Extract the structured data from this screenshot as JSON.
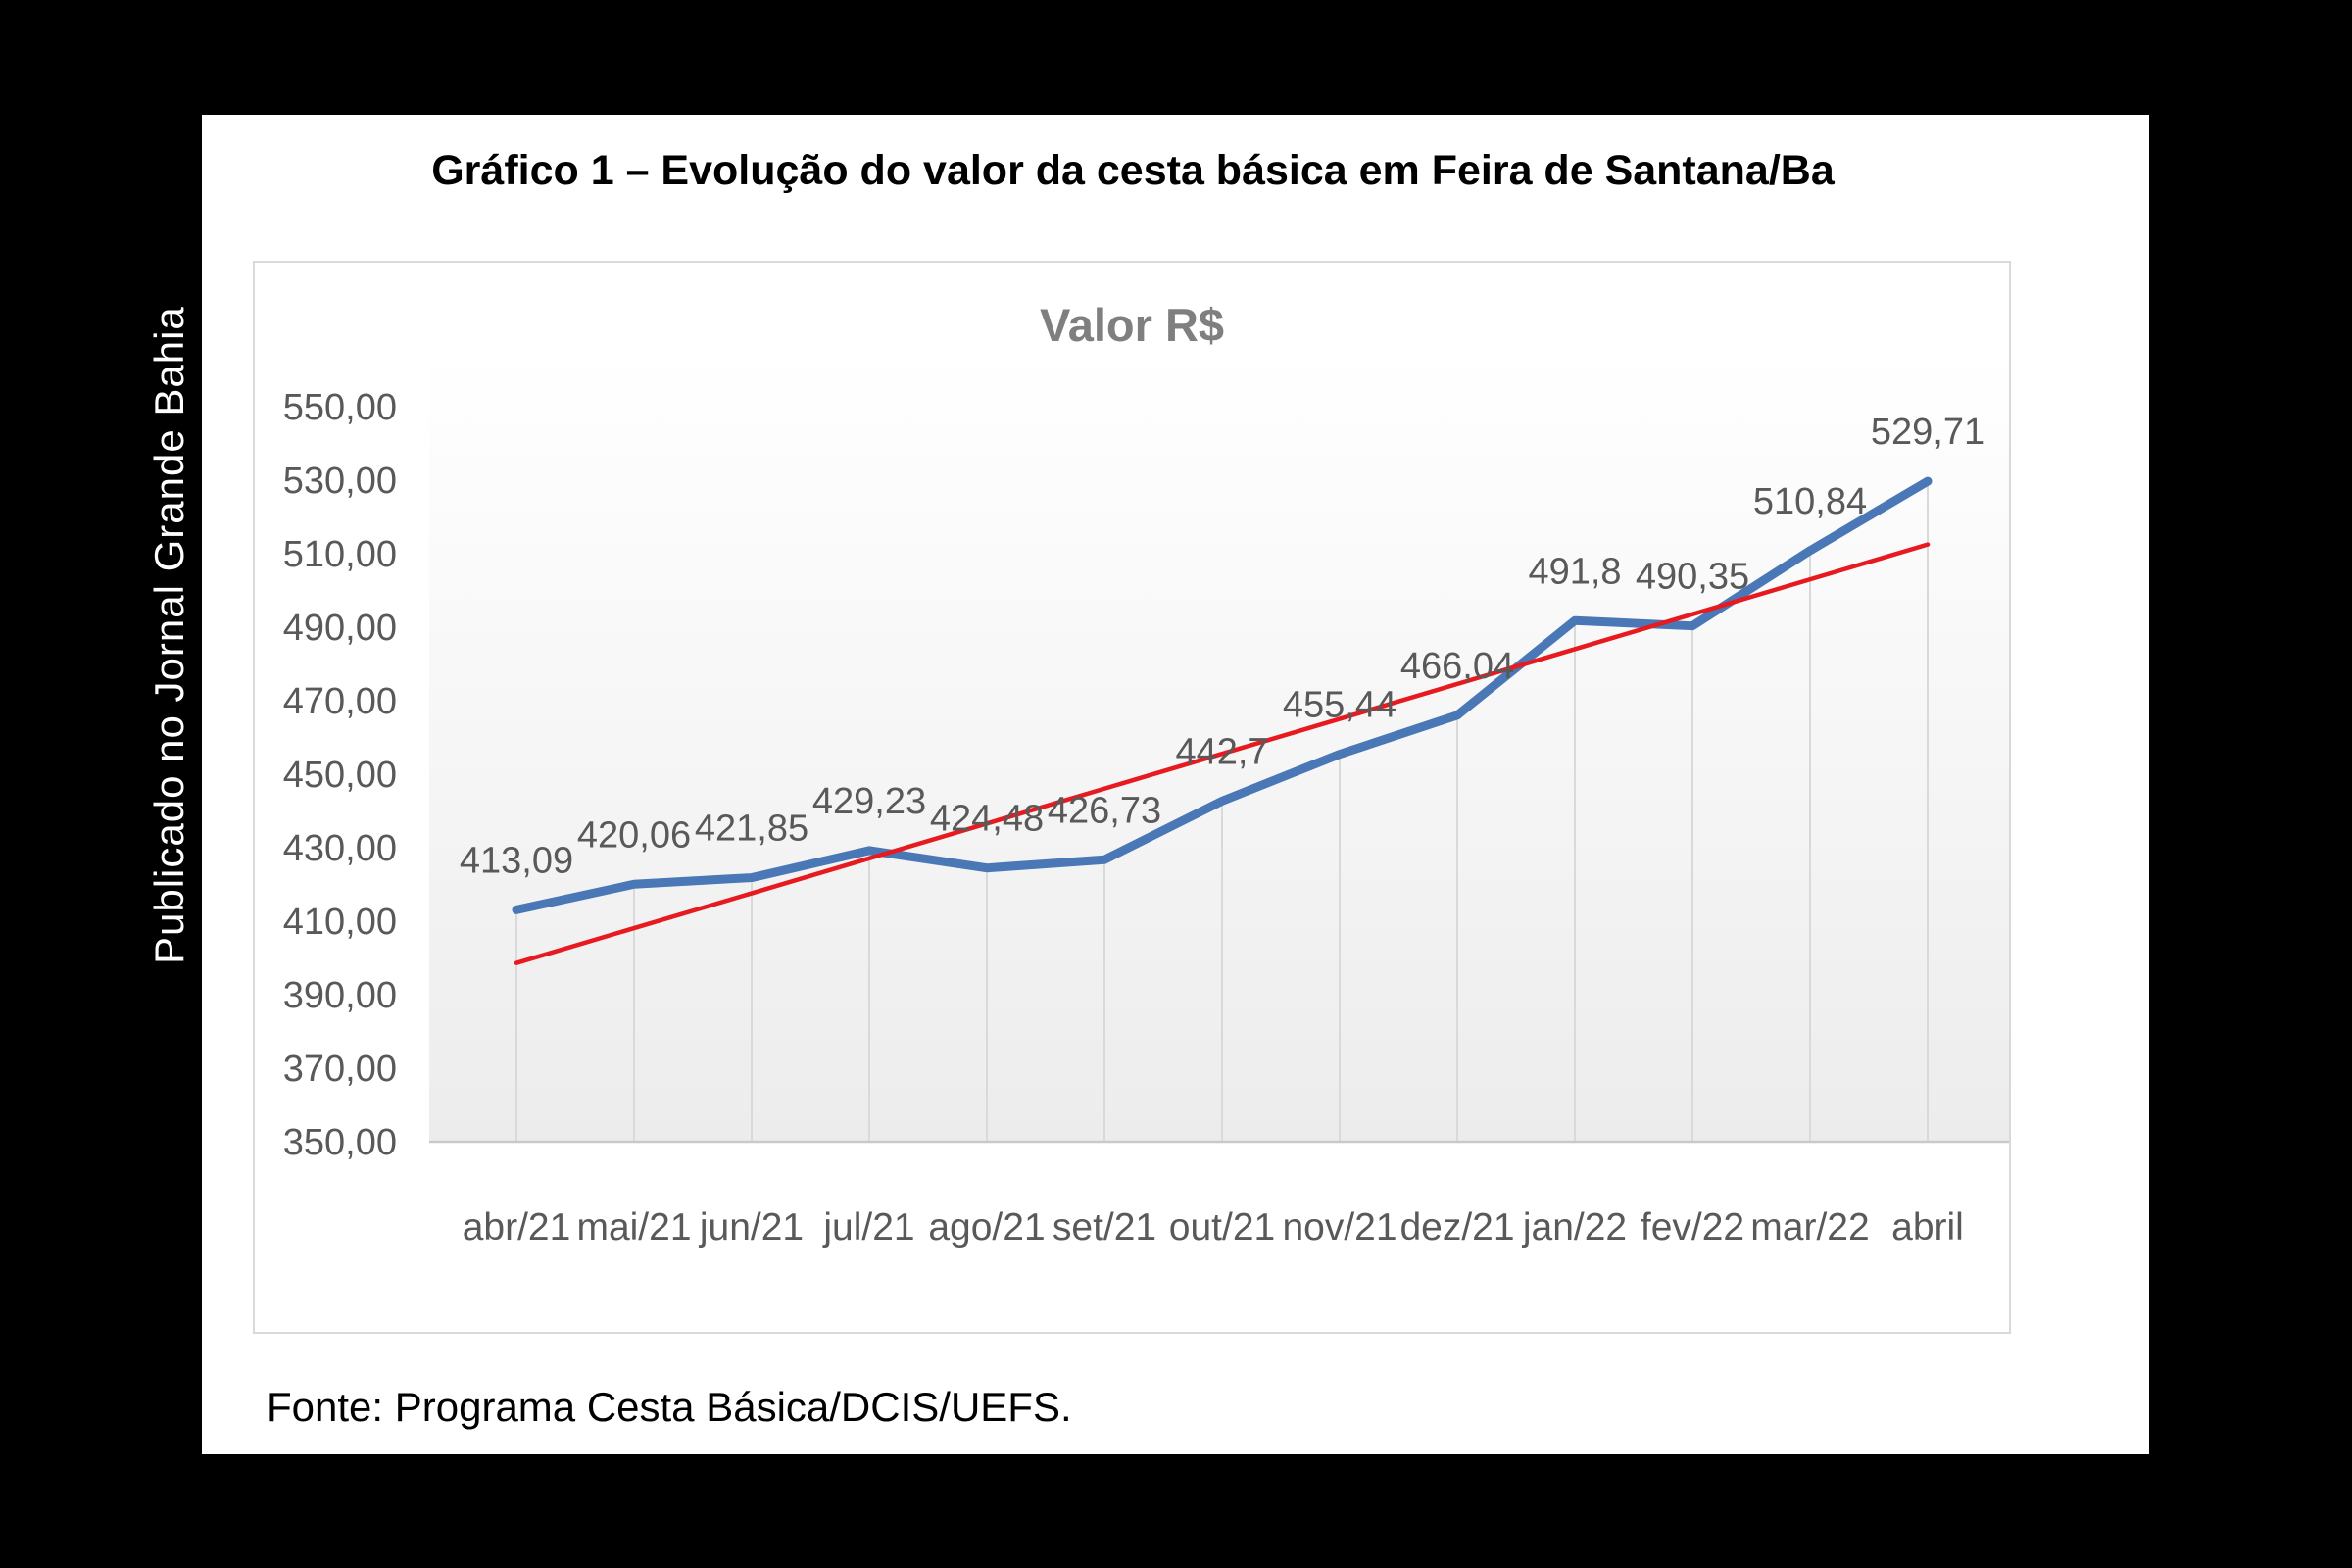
{
  "page": {
    "side_caption": "Publicado no Jornal Grande Bahia",
    "title": "Gráfico 1 – Evolução do valor da cesta básica em Feira de Santana/Ba",
    "source_note": "Fonte: Programa Cesta Básica/DCIS/UEFS."
  },
  "chart_data": {
    "type": "line",
    "title": "Valor R$",
    "categories": [
      "abr/21",
      "mai/21",
      "jun/21",
      "jul/21",
      "ago/21",
      "set/21",
      "out/21",
      "nov/21",
      "dez/21",
      "jan/22",
      "fev/22",
      "mar/22",
      "abril"
    ],
    "series": [
      {
        "name": "Valor R$",
        "color": "#4a77b5",
        "values": [
          413.09,
          420.06,
          421.85,
          429.23,
          424.48,
          426.73,
          442.7,
          455.44,
          466.04,
          491.8,
          490.35,
          510.84,
          529.71
        ]
      }
    ],
    "data_labels": [
      "413,09",
      "420,06",
      "421,85",
      "429,23",
      "424,48",
      "426,73",
      "442,7",
      "455,44",
      "466,04",
      "491,8",
      "490,35",
      "510,84",
      "529,71"
    ],
    "trendline": {
      "type": "linear",
      "color": "#e61a1f"
    },
    "ylim": [
      350,
      550
    ],
    "ytick_step": 20,
    "ytick_values": [
      350,
      370,
      390,
      410,
      430,
      450,
      470,
      490,
      510,
      530,
      550
    ],
    "ytick_labels": [
      "350,00",
      "370,00",
      "390,00",
      "410,00",
      "430,00",
      "450,00",
      "470,00",
      "490,00",
      "510,00",
      "530,00",
      "550,00"
    ],
    "grid": "vertical-drop-lines",
    "legend": "none",
    "colors": {
      "drop_line": "#d9d9d9",
      "axis_line": "#c9c9c9",
      "tick_label": "#595959",
      "data_label": "#595959",
      "chart_title": "#7f7f7f"
    }
  }
}
